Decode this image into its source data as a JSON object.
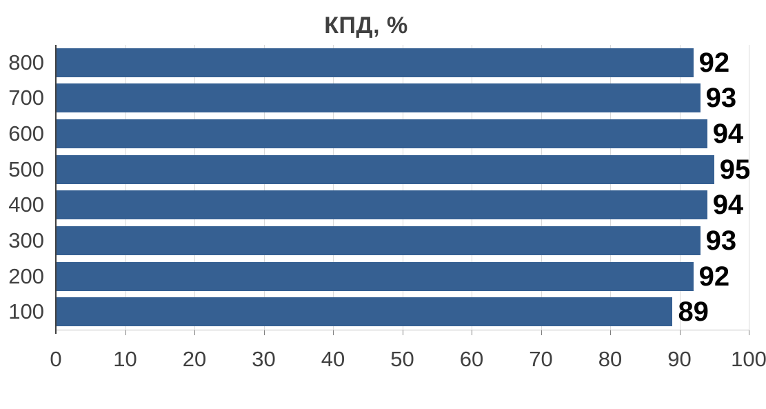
{
  "chart": {
    "background": "#FFFFFF",
    "colors": {
      "bar": "#366092",
      "gridline": "#D9D9D9",
      "x_axis_line": "#BFBFBF",
      "y_axis_line": "#404040",
      "tick": "#7F7F7F",
      "axis_text": "#404040",
      "value_label_text": "#000000",
      "title_text": "#404040"
    }
  },
  "chart_data": {
    "type": "bar",
    "orientation": "horizontal",
    "title": "КПД, %",
    "xlabel": "",
    "ylabel": "",
    "categories": [
      "800",
      "700",
      "600",
      "500",
      "400",
      "300",
      "200",
      "100"
    ],
    "values": [
      92,
      93,
      94,
      95,
      94,
      93,
      92,
      89
    ],
    "data_labels": [
      "92",
      "93",
      "94",
      "95",
      "94",
      "93",
      "92",
      "89"
    ],
    "xlim": [
      0,
      100
    ],
    "xticks": [
      0,
      10,
      20,
      30,
      40,
      50,
      60,
      70,
      80,
      90,
      100
    ],
    "xtick_labels": [
      "0",
      "10",
      "20",
      "30",
      "40",
      "50",
      "60",
      "70",
      "80",
      "90",
      "100"
    ],
    "grid": true,
    "legend": false
  }
}
